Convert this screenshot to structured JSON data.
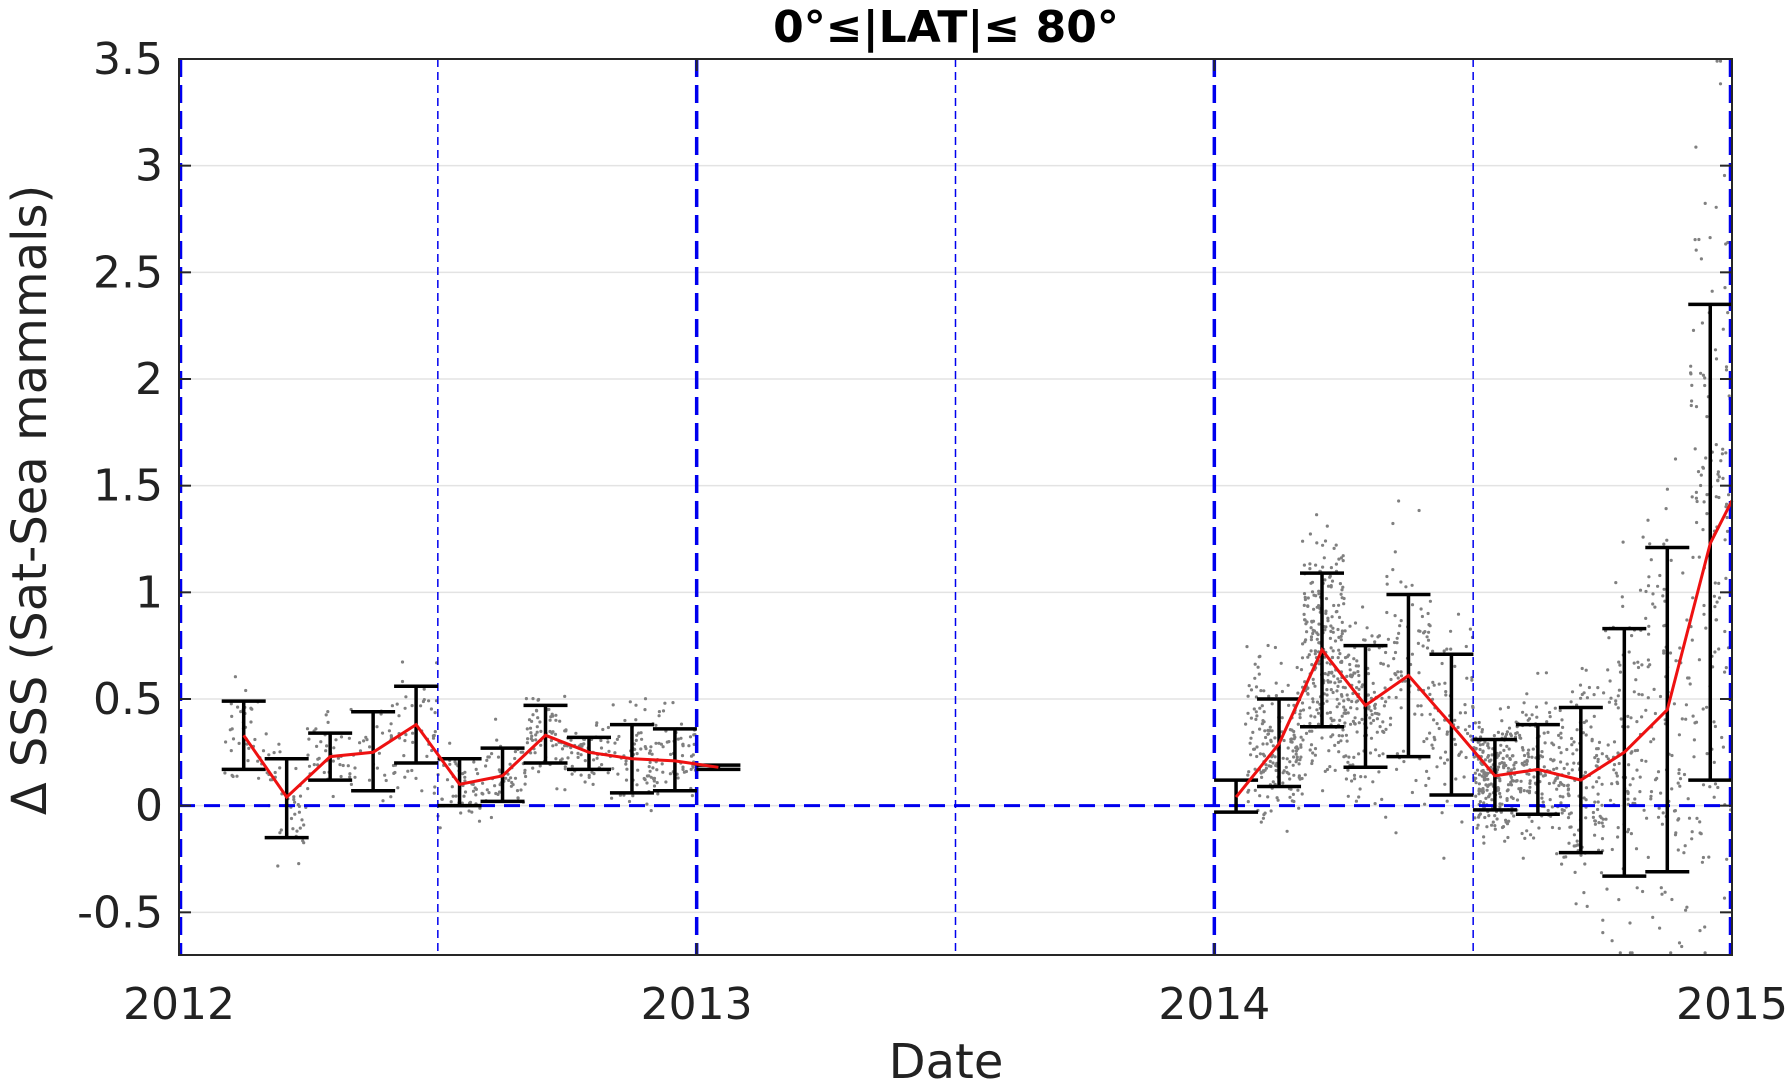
{
  "chart_data": {
    "type": "line",
    "title": "0°≤|LAT|≤ 80°",
    "xlabel": "Date",
    "ylabel": "Δ SSS (Sat-Sea mammals)",
    "xlim": [
      2012.0,
      2015.0
    ],
    "ylim": [
      -0.7,
      3.5
    ],
    "x_ticks": [
      {
        "value": 2012,
        "label": "2012"
      },
      {
        "value": 2013,
        "label": "2013"
      },
      {
        "value": 2014,
        "label": "2014"
      },
      {
        "value": 2015,
        "label": "2015"
      }
    ],
    "y_ticks": [
      {
        "value": 3.5,
        "label": "3.5"
      },
      {
        "value": 3.0,
        "label": "3"
      },
      {
        "value": 2.5,
        "label": "2.5"
      },
      {
        "value": 2.0,
        "label": "2"
      },
      {
        "value": 1.5,
        "label": "1.5"
      },
      {
        "value": 1.0,
        "label": "1"
      },
      {
        "value": 0.5,
        "label": "0.5"
      },
      {
        "value": 0.0,
        "label": "0"
      },
      {
        "value": -0.5,
        "label": "-0.5"
      }
    ],
    "grid": "horizontal",
    "zero_line": {
      "value": 0,
      "color": "#0000ee",
      "style": "dashed"
    },
    "year_lines": {
      "values": [
        2012.0,
        2013.0,
        2014.0,
        2015.0
      ],
      "color": "#0000ee",
      "style": "thick dashed"
    },
    "half_year_lines": {
      "values": [
        2012.5,
        2013.5,
        2014.5
      ],
      "color": "#0000ee",
      "style": "thin dashed"
    },
    "colors": {
      "mean_line": "#ee1111",
      "error_bars": "#000000",
      "scatter": "#808080",
      "reference_lines": "#0000ee"
    },
    "series": [
      {
        "kind": "mean_with_error_bars",
        "points": [
          {
            "x": 2012.125,
            "y": 0.33,
            "low": 0.17,
            "high": 0.49
          },
          {
            "x": 2012.208,
            "y": 0.04,
            "low": -0.15,
            "high": 0.22
          },
          {
            "x": 2012.292,
            "y": 0.23,
            "low": 0.12,
            "high": 0.34
          },
          {
            "x": 2012.375,
            "y": 0.25,
            "low": 0.07,
            "high": 0.44
          },
          {
            "x": 2012.458,
            "y": 0.38,
            "low": 0.2,
            "high": 0.56
          },
          {
            "x": 2012.542,
            "y": 0.1,
            "low": 0.0,
            "high": 0.22
          },
          {
            "x": 2012.625,
            "y": 0.14,
            "low": 0.02,
            "high": 0.27
          },
          {
            "x": 2012.708,
            "y": 0.33,
            "low": 0.2,
            "high": 0.47
          },
          {
            "x": 2012.792,
            "y": 0.25,
            "low": 0.17,
            "high": 0.32
          },
          {
            "x": 2012.875,
            "y": 0.22,
            "low": 0.06,
            "high": 0.38
          },
          {
            "x": 2012.958,
            "y": 0.21,
            "low": 0.07,
            "high": 0.36
          },
          {
            "x": 2013.042,
            "y": 0.18,
            "low": 0.17,
            "high": 0.19
          }
        ]
      },
      {
        "kind": "mean_with_error_bars",
        "points": [
          {
            "x": 2014.042,
            "y": 0.04,
            "low": -0.03,
            "high": 0.12
          },
          {
            "x": 2014.125,
            "y": 0.29,
            "low": 0.09,
            "high": 0.5
          },
          {
            "x": 2014.208,
            "y": 0.73,
            "low": 0.37,
            "high": 1.09
          },
          {
            "x": 2014.292,
            "y": 0.47,
            "low": 0.18,
            "high": 0.75
          },
          {
            "x": 2014.375,
            "y": 0.61,
            "low": 0.23,
            "high": 0.99
          },
          {
            "x": 2014.458,
            "y": 0.38,
            "low": 0.05,
            "high": 0.71
          },
          {
            "x": 2014.542,
            "y": 0.14,
            "low": -0.02,
            "high": 0.31
          },
          {
            "x": 2014.625,
            "y": 0.17,
            "low": -0.04,
            "high": 0.38
          },
          {
            "x": 2014.708,
            "y": 0.12,
            "low": -0.22,
            "high": 0.46
          },
          {
            "x": 2014.792,
            "y": 0.25,
            "low": -0.33,
            "high": 0.83
          },
          {
            "x": 2014.875,
            "y": 0.45,
            "low": -0.31,
            "high": 1.21
          },
          {
            "x": 2014.958,
            "y": 1.23,
            "low": 0.12,
            "high": 2.35
          }
        ]
      },
      {
        "kind": "mean_line_tail",
        "points": [
          {
            "x": 2015.0,
            "y": 1.43
          }
        ]
      }
    ],
    "scatter_clusters": [
      {
        "x": [
          2012.08,
          2012.17
        ],
        "center": 0.33,
        "spread": 0.12,
        "count": 40
      },
      {
        "x": [
          2012.17,
          2012.25
        ],
        "center": 0.04,
        "spread": 0.14,
        "count": 45
      },
      {
        "x": [
          2012.25,
          2012.33
        ],
        "center": 0.23,
        "spread": 0.09,
        "count": 35
      },
      {
        "x": [
          2012.33,
          2012.42
        ],
        "center": 0.25,
        "spread": 0.13,
        "count": 35
      },
      {
        "x": [
          2012.42,
          2012.5
        ],
        "center": 0.38,
        "spread": 0.14,
        "count": 40
      },
      {
        "x": [
          2012.5,
          2012.58
        ],
        "center": 0.1,
        "spread": 0.09,
        "count": 50
      },
      {
        "x": [
          2012.58,
          2012.67
        ],
        "center": 0.14,
        "spread": 0.1,
        "count": 55
      },
      {
        "x": [
          2012.67,
          2012.75
        ],
        "center": 0.33,
        "spread": 0.1,
        "count": 70
      },
      {
        "x": [
          2012.75,
          2012.83
        ],
        "center": 0.25,
        "spread": 0.07,
        "count": 60
      },
      {
        "x": [
          2012.83,
          2012.92
        ],
        "center": 0.22,
        "spread": 0.12,
        "count": 70
      },
      {
        "x": [
          2012.92,
          2013.0
        ],
        "center": 0.21,
        "spread": 0.11,
        "count": 60
      },
      {
        "x": [
          2014.06,
          2014.17
        ],
        "center": 0.3,
        "spread": 0.18,
        "count": 180
      },
      {
        "x": [
          2014.17,
          2014.25
        ],
        "center": 0.73,
        "spread": 0.28,
        "count": 260
      },
      {
        "x": [
          2014.25,
          2014.33
        ],
        "center": 0.47,
        "spread": 0.22,
        "count": 140
      },
      {
        "x": [
          2014.33,
          2014.42
        ],
        "center": 0.61,
        "spread": 0.28,
        "count": 90
      },
      {
        "x": [
          2014.42,
          2014.5
        ],
        "center": 0.38,
        "spread": 0.25,
        "count": 70
      },
      {
        "x": [
          2014.5,
          2014.58
        ],
        "center": 0.14,
        "spread": 0.13,
        "count": 220
      },
      {
        "x": [
          2014.58,
          2014.67
        ],
        "center": 0.17,
        "spread": 0.16,
        "count": 150
      },
      {
        "x": [
          2014.67,
          2014.75
        ],
        "center": 0.12,
        "spread": 0.26,
        "count": 130
      },
      {
        "x": [
          2014.75,
          2014.83
        ],
        "center": 0.25,
        "spread": 0.44,
        "count": 110
      },
      {
        "x": [
          2014.83,
          2014.92
        ],
        "center": 0.45,
        "spread": 0.58,
        "count": 110
      },
      {
        "x": [
          2014.92,
          2015.0
        ],
        "center": 1.23,
        "spread": 0.85,
        "count": 150
      }
    ]
  }
}
